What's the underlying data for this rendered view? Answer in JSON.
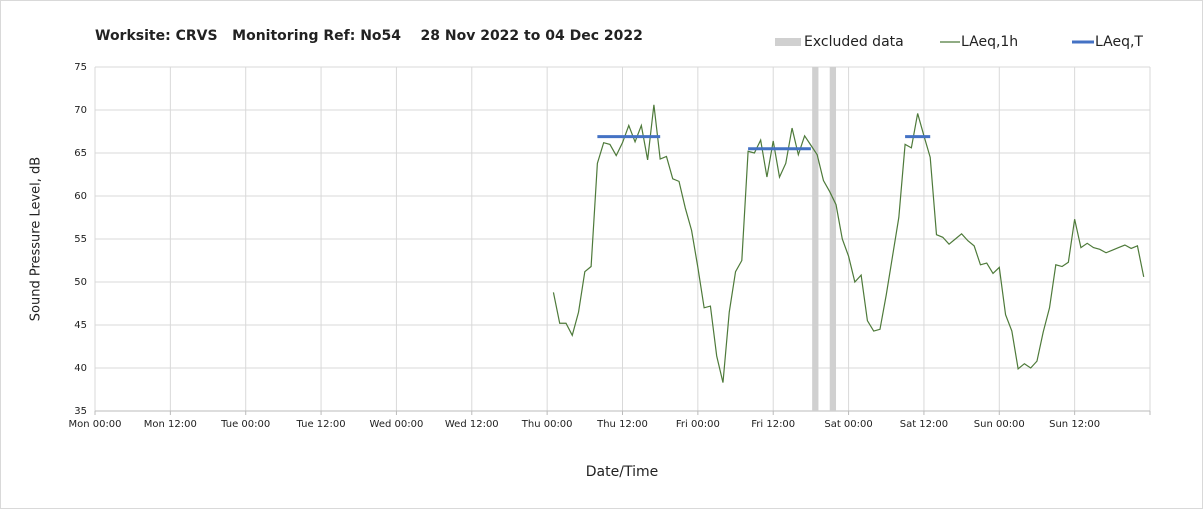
{
  "chart_data": {
    "type": "line",
    "title": "Worksite: CRVS   Monitoring Ref: No54    28 Nov 2022 to 04 Dec 2022",
    "x_label": "Date/Time",
    "y_label": "Sound Pressure Level, dB",
    "xlim": [
      0,
      168
    ],
    "ylim": [
      35,
      75
    ],
    "xticks": [
      {
        "value": 0,
        "label": "Mon 00:00"
      },
      {
        "value": 12,
        "label": "Mon 12:00"
      },
      {
        "value": 24,
        "label": "Tue 00:00"
      },
      {
        "value": 36,
        "label": "Tue 12:00"
      },
      {
        "value": 48,
        "label": "Wed 00:00"
      },
      {
        "value": 60,
        "label": "Wed 12:00"
      },
      {
        "value": 72,
        "label": "Thu 00:00"
      },
      {
        "value": 84,
        "label": "Thu 12:00"
      },
      {
        "value": 96,
        "label": "Fri 00:00"
      },
      {
        "value": 108,
        "label": "Fri 12:00"
      },
      {
        "value": 120,
        "label": "Sat 00:00"
      },
      {
        "value": 132,
        "label": "Sat 12:00"
      },
      {
        "value": 144,
        "label": "Sun 00:00"
      },
      {
        "value": 156,
        "label": "Sun 12:00"
      },
      168
    ],
    "yticks": [
      35,
      40,
      45,
      50,
      55,
      60,
      65,
      70,
      75
    ],
    "grid": true,
    "legend": "top-right",
    "excluded": {
      "name": "Excluded data",
      "color": "#d0d0d0",
      "start": [
        114.2,
        117
      ],
      "end": [
        115.2,
        118
      ]
    },
    "series": [
      {
        "name": "LAeq,1h",
        "color": "#4e7a3a",
        "x": [
          73,
          74,
          75,
          76,
          77,
          78,
          79,
          80,
          81,
          82,
          83,
          84,
          85,
          86,
          87,
          88,
          89,
          90,
          91,
          92,
          93,
          94,
          95,
          96,
          97,
          98,
          99,
          100,
          101,
          102,
          103,
          104,
          105,
          106,
          107,
          108,
          109,
          110,
          111,
          112,
          113,
          114,
          115,
          116,
          117,
          118,
          119,
          120,
          121,
          122,
          123,
          124,
          125,
          126,
          127,
          128,
          129,
          130,
          131,
          132,
          133,
          134,
          135,
          136,
          137,
          138,
          139,
          140,
          141,
          142,
          143,
          144,
          145,
          146,
          147,
          148,
          149,
          150,
          151,
          152,
          153,
          154,
          155,
          156,
          157,
          158,
          159,
          160,
          161,
          162,
          163,
          164,
          165,
          166,
          167
        ],
        "values": [
          48.8,
          45.2,
          45.2,
          43.8,
          46.5,
          51.2,
          51.8,
          63.8,
          66.2,
          66.0,
          64.7,
          66.2,
          68.2,
          66.3,
          68.2,
          64.2,
          70.6,
          64.3,
          64.6,
          62.0,
          61.7,
          58.6,
          56.0,
          51.7,
          47.0,
          47.2,
          41.4,
          38.3,
          46.5,
          51.2,
          52.5,
          65.2,
          65.0,
          66.5,
          62.2,
          66.4,
          62.2,
          63.8,
          67.9,
          64.8,
          67.0,
          65.9,
          64.8,
          61.8,
          60.5,
          59.0,
          55.0,
          53.0,
          50.0,
          50.8,
          45.5,
          44.3,
          44.5,
          48.5,
          53.0,
          57.5,
          66.0,
          65.6,
          69.6,
          67.0,
          64.5,
          55.5,
          55.2,
          54.4,
          55.0,
          55.6,
          54.8,
          54.2,
          52.0,
          52.2,
          51.0,
          51.7,
          46.2,
          44.3,
          39.9,
          40.5,
          40.0,
          40.8,
          44.2,
          47.0,
          52.0,
          51.8,
          52.3,
          57.3,
          54.0,
          54.5,
          54.0,
          53.8,
          53.4,
          53.7,
          54.0,
          54.3,
          53.9,
          54.2,
          50.6
        ]
      },
      {
        "name": "LAeq,T",
        "color": "#4472c4",
        "start": [
          80,
          104,
          129
        ],
        "end": [
          90,
          114,
          133
        ],
        "values": [
          66.9,
          65.5,
          66.9
        ]
      }
    ]
  }
}
